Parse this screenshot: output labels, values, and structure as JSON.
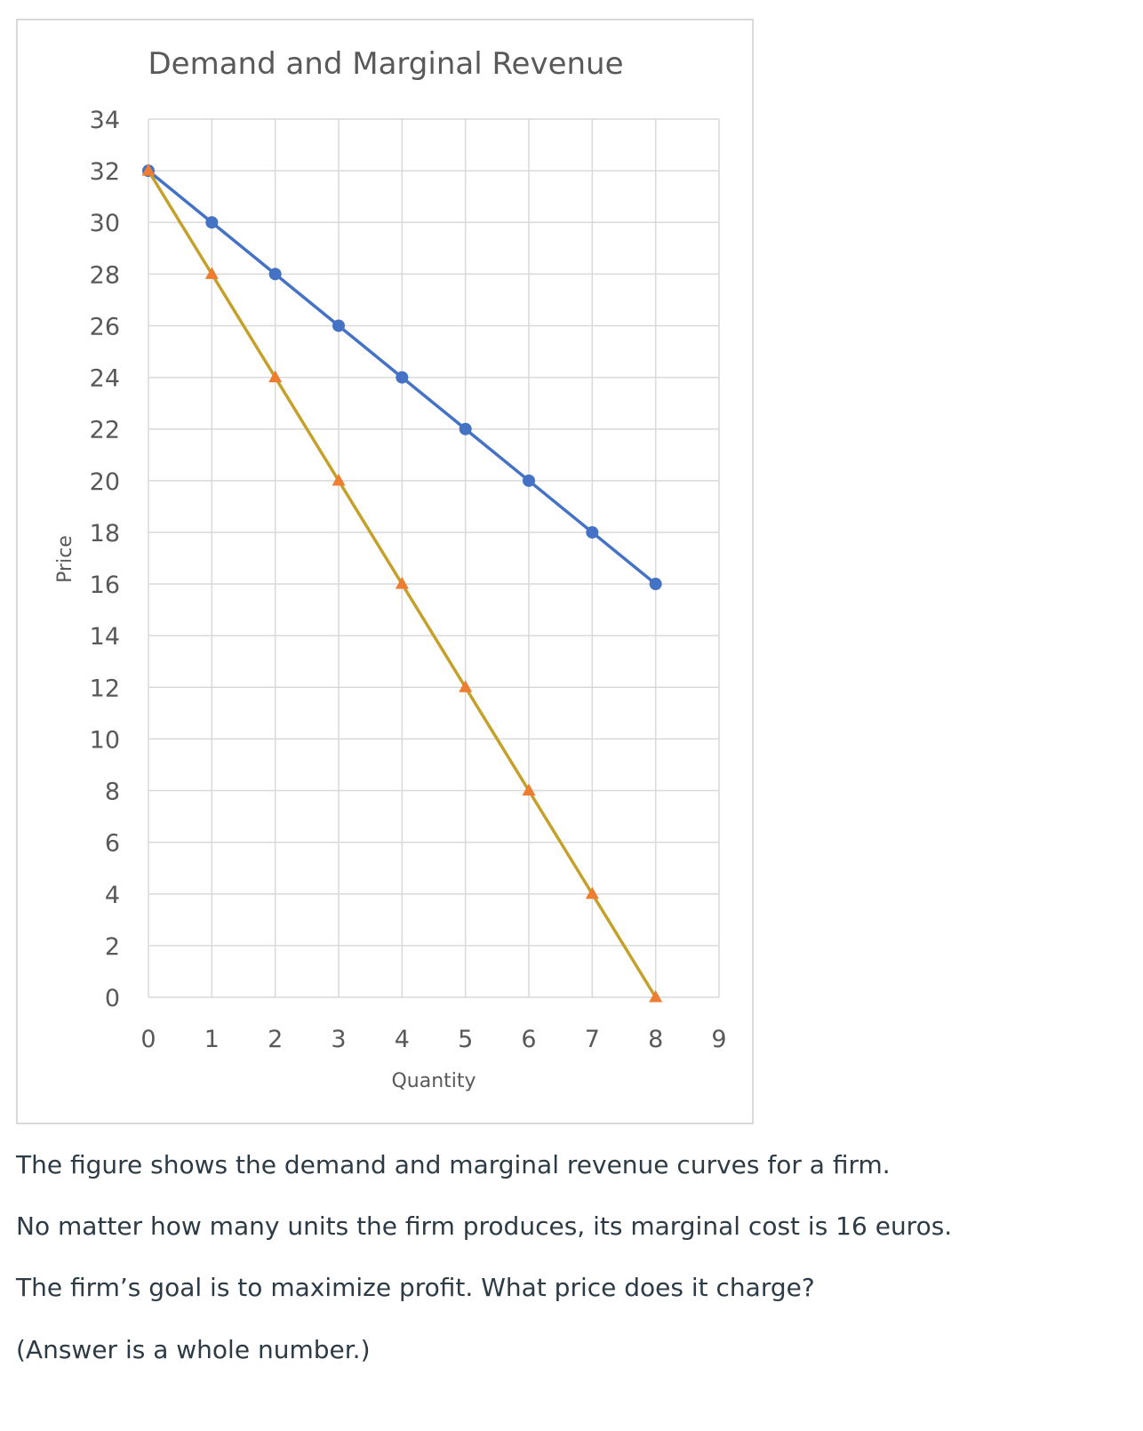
{
  "chart_data": {
    "type": "line",
    "title": "Demand and Marginal Revenue",
    "xlabel": "Quantity",
    "ylabel": "Price",
    "xlim": [
      0,
      9
    ],
    "ylim": [
      0,
      34
    ],
    "x_ticks": [
      "0",
      "1",
      "2",
      "3",
      "4",
      "5",
      "6",
      "7",
      "8",
      "9"
    ],
    "y_ticks": [
      "0",
      "2",
      "4",
      "6",
      "8",
      "10",
      "12",
      "14",
      "16",
      "18",
      "20",
      "22",
      "24",
      "26",
      "28",
      "30",
      "32",
      "34"
    ],
    "grid": true,
    "series": [
      {
        "x": [
          0,
          1,
          2,
          3,
          4,
          5,
          6,
          7,
          8
        ],
        "y": [
          32,
          30,
          28,
          26,
          24,
          22,
          20,
          18,
          16
        ],
        "color": "#4472c4",
        "marker": "circle"
      },
      {
        "x": [
          0,
          1,
          2,
          3,
          4,
          5,
          6,
          7,
          8
        ],
        "y": [
          32,
          28,
          24,
          20,
          16,
          12,
          8,
          4,
          0
        ],
        "color": "#c5a12b",
        "marker_color": "#ed7d31",
        "marker": "triangle"
      }
    ]
  },
  "question": {
    "line1": "The figure shows the demand and marginal revenue curves for a firm.",
    "line2": "No matter how many units the firm produces, its marginal cost is 16 euros.",
    "line3": "The firm’s goal is to maximize profit. What price does it charge?",
    "line4": "(Answer is a whole number.)"
  }
}
